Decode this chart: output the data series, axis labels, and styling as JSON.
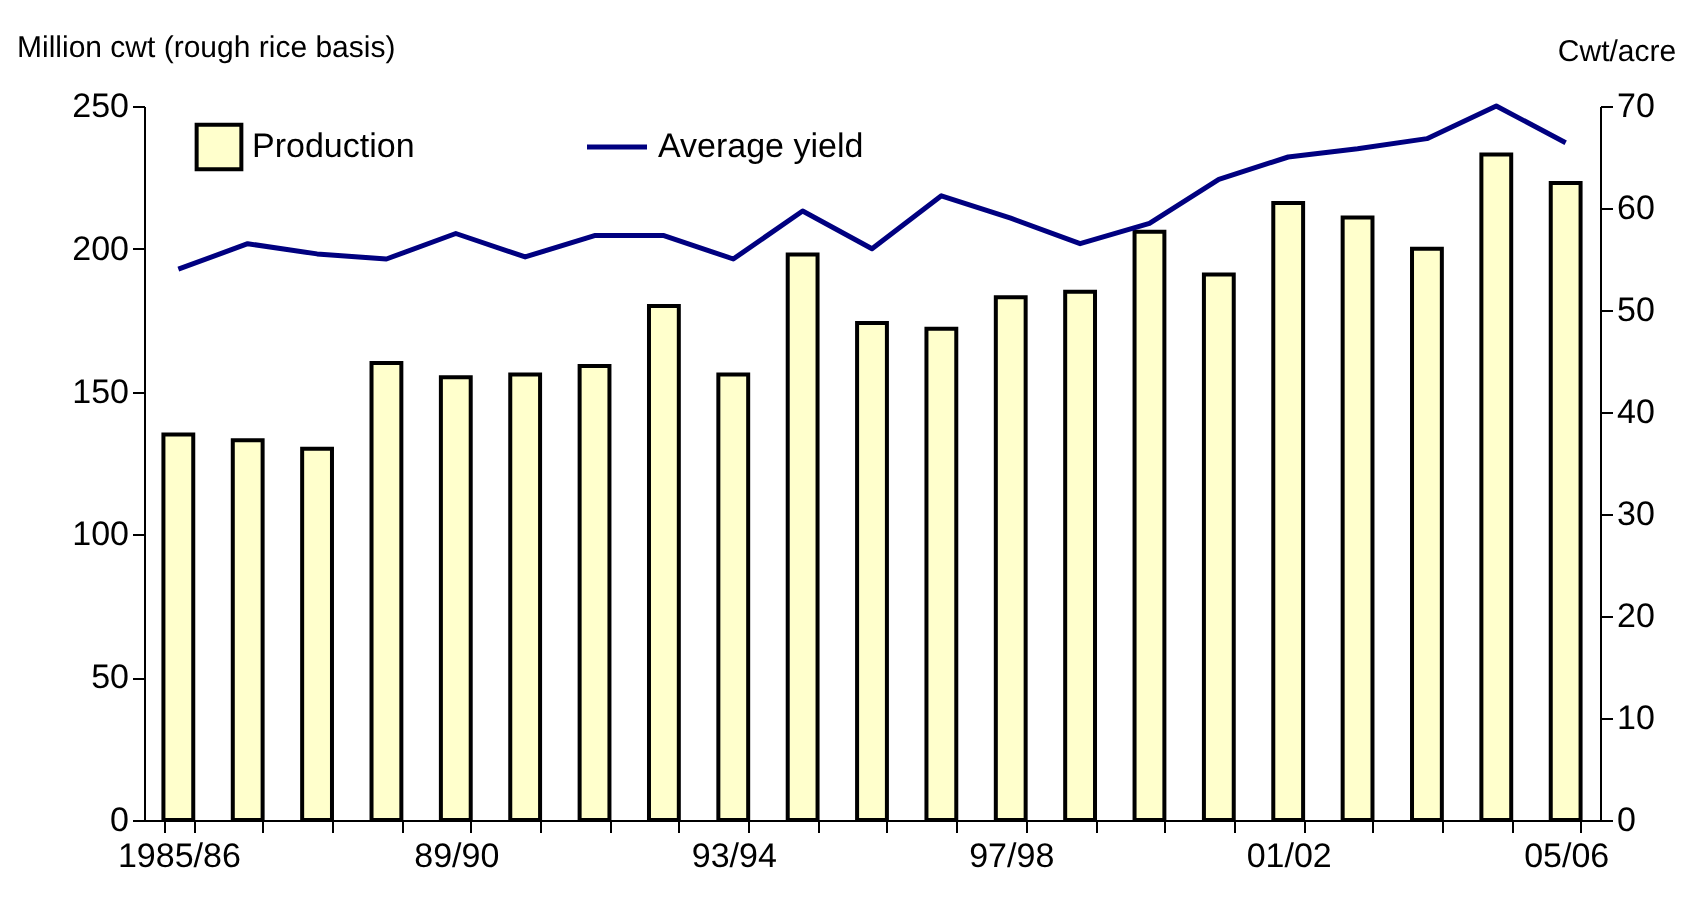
{
  "chart_data": {
    "type": "bar",
    "ylabel": "Million cwt (rough rice basis)",
    "y2label": "Cwt/acre",
    "categories": [
      "1985/86",
      null,
      null,
      null,
      "89/90",
      null,
      null,
      null,
      "93/94",
      null,
      null,
      null,
      "97/98",
      null,
      null,
      null,
      "01/02",
      null,
      null,
      null,
      "05/06"
    ],
    "series": [
      {
        "name": "Production",
        "type": "bar",
        "color": "#ffffcc",
        "values": [
          135,
          133,
          130,
          160,
          155,
          156,
          159,
          180,
          156,
          198,
          174,
          172,
          183,
          185,
          206,
          191,
          216,
          211,
          200,
          233,
          223
        ]
      },
      {
        "name": "Average yield",
        "type": "line",
        "axis": "y2",
        "color": "#000080",
        "values": [
          54,
          56.5,
          55.5,
          55,
          57.5,
          55.2,
          57.3,
          57.3,
          55,
          59.7,
          56,
          61.2,
          59,
          56.5,
          58.5,
          62.8,
          65,
          65.8,
          66.8,
          70,
          66.4
        ]
      }
    ],
    "ylim": [
      0,
      250
    ],
    "yticks": [
      0,
      50,
      100,
      150,
      200,
      250
    ],
    "y2lim": [
      0,
      70
    ],
    "y2ticks": [
      0,
      10,
      20,
      30,
      40,
      50,
      60,
      70
    ],
    "legend": "top left",
    "grid": false
  }
}
